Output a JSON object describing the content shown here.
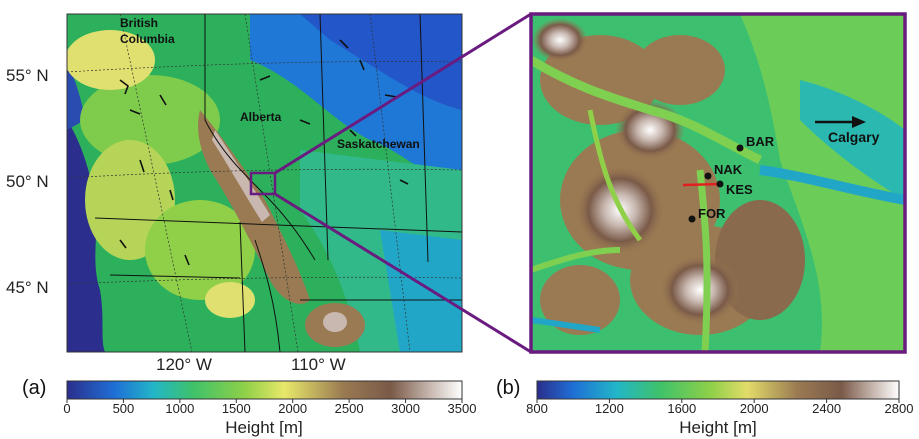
{
  "panel_a": {
    "label": "(a)",
    "lat_labels": [
      "55° N",
      "50° N",
      "45° N"
    ],
    "lon_labels": [
      "120° W",
      "110° W"
    ],
    "regions": [
      "British",
      "Columbia",
      "Alberta",
      "Saskatchewan"
    ],
    "colorbar": {
      "ticks": [
        "0",
        "500",
        "1000",
        "1500",
        "2000",
        "2500",
        "3000",
        "3500"
      ],
      "title": "Height [m]"
    }
  },
  "panel_b": {
    "label": "(b)",
    "stations": [
      "BAR",
      "NAK",
      "KES",
      "FOR"
    ],
    "arrow_label": "Calgary",
    "colorbar": {
      "ticks": [
        "800",
        "1200",
        "1600",
        "2000",
        "2400",
        "2800"
      ],
      "title": "Height [m]"
    }
  },
  "colors": {
    "frame": "#6a1b7f",
    "transect": "#e02020",
    "terrain_low": "#2b2e8c",
    "terrain_high": "#ffffff"
  }
}
